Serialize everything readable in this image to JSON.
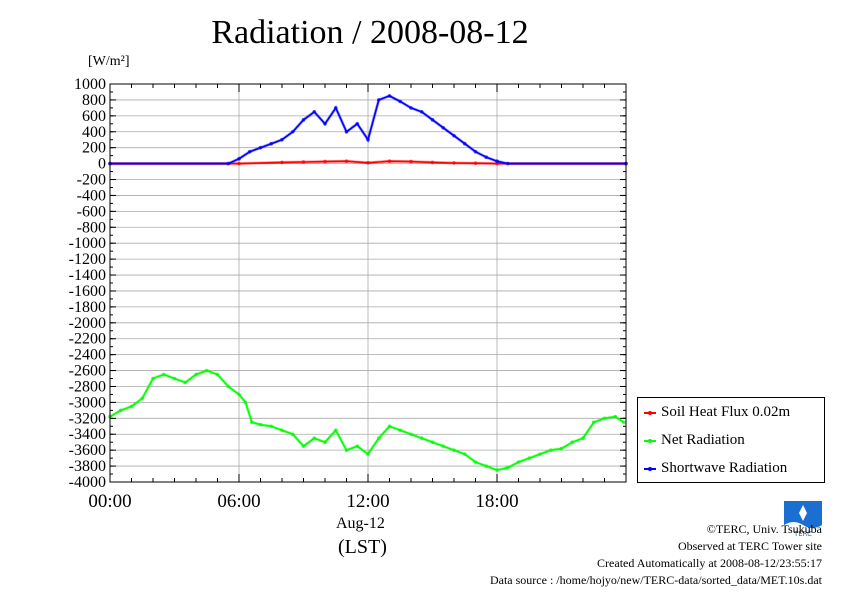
{
  "unit_label": "[W/m²]",
  "date_label": "Aug-12",
  "time_unit": "(LST)",
  "footer": {
    "copyright": "©TERC, Univ. Tsukuba",
    "observed": "Observed at TERC Tower site",
    "created": "Created Automatically at 2008-08-12/23:55:17",
    "source": "Data source : /home/hojyo/new/TERC-data/sorted_data/MET.10s.dat"
  },
  "logo_text": "TERC",
  "chart_data": {
    "type": "line",
    "title": "Radiation / 2008-08-12",
    "xlabel": "(LST)",
    "ylabel": "[W/m²]",
    "xlim": [
      0,
      24
    ],
    "ylim": [
      -4000,
      1000
    ],
    "y_ticks": [
      1000,
      800,
      600,
      400,
      200,
      0,
      -200,
      -400,
      -600,
      -800,
      -1000,
      -1200,
      -1400,
      -1600,
      -1800,
      -2000,
      -2200,
      -2400,
      -2600,
      -2800,
      -3000,
      -3200,
      -3400,
      -3600,
      -3800,
      -4000
    ],
    "x_ticks": [
      "00:00",
      "06:00",
      "12:00",
      "18:00"
    ],
    "x_tick_hours": [
      0,
      6,
      12,
      18
    ],
    "grid": true,
    "legend_position": "right",
    "series": [
      {
        "name": "Soil Heat Flux 0.02m",
        "color": "#ff0000",
        "x": [
          0,
          6,
          8,
          9,
          10,
          11,
          12,
          13,
          14,
          15,
          16,
          17,
          18,
          24
        ],
        "y": [
          0,
          0,
          15,
          20,
          25,
          30,
          10,
          30,
          25,
          15,
          8,
          5,
          0,
          0
        ]
      },
      {
        "name": "Net Radiation",
        "color": "#00ff00",
        "x": [
          0,
          0.5,
          1,
          1.5,
          2,
          2.5,
          3,
          3.5,
          4,
          4.5,
          5,
          5.5,
          6,
          6.3,
          6.6,
          7,
          7.5,
          8,
          8.5,
          9,
          9.5,
          10,
          10.5,
          11,
          11.5,
          12,
          12.5,
          13,
          13.5,
          14,
          14.5,
          15,
          15.5,
          16,
          16.5,
          17,
          17.5,
          18,
          18.5,
          19,
          19.5,
          20,
          20.5,
          21,
          21.5,
          22,
          22.5,
          23,
          23.5,
          23.9
        ],
        "y": [
          -3180,
          -3100,
          -3050,
          -2950,
          -2700,
          -2650,
          -2700,
          -2750,
          -2650,
          -2600,
          -2650,
          -2800,
          -2900,
          -3000,
          -3250,
          -3280,
          -3300,
          -3350,
          -3400,
          -3550,
          -3450,
          -3500,
          -3350,
          -3600,
          -3550,
          -3650,
          -3450,
          -3300,
          -3350,
          -3400,
          -3450,
          -3500,
          -3550,
          -3600,
          -3650,
          -3750,
          -3800,
          -3850,
          -3820,
          -3750,
          -3700,
          -3650,
          -3600,
          -3580,
          -3500,
          -3450,
          -3250,
          -3200,
          -3180,
          -3250
        ]
      },
      {
        "name": "Shortwave Radiation",
        "color": "#0000ff",
        "x": [
          0,
          5.5,
          6,
          6.5,
          7,
          7.5,
          8,
          8.5,
          9,
          9.5,
          10,
          10.5,
          11,
          11.5,
          12,
          12.5,
          13,
          13.5,
          14,
          14.5,
          15,
          15.5,
          16,
          16.5,
          17,
          17.5,
          18,
          18.5,
          24
        ],
        "y": [
          0,
          0,
          60,
          150,
          200,
          250,
          300,
          400,
          550,
          650,
          500,
          700,
          400,
          500,
          300,
          800,
          850,
          780,
          700,
          650,
          550,
          450,
          350,
          250,
          150,
          80,
          30,
          0,
          0
        ]
      }
    ]
  }
}
